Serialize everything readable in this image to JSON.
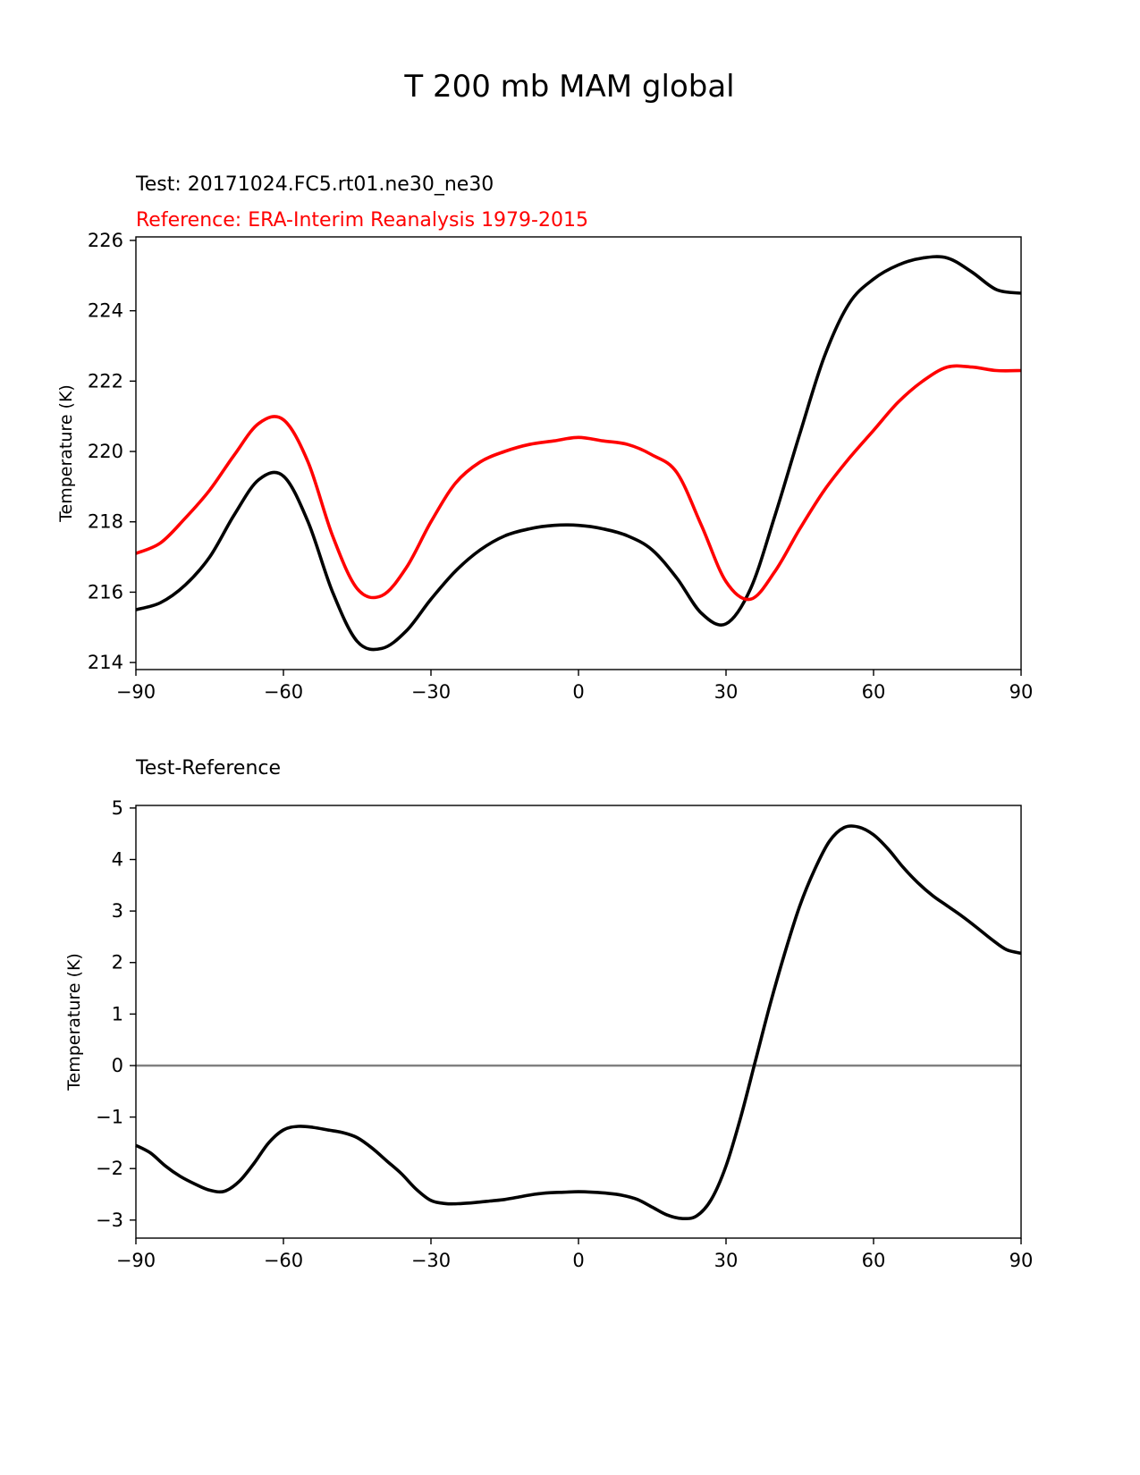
{
  "figure": {
    "title": "T 200 mb MAM global"
  },
  "colors": {
    "test": "#000000",
    "reference": "#ff0000",
    "zero_line": "#808080",
    "axes": "#000000"
  },
  "chart_data": [
    {
      "type": "line",
      "subtitle_test": "Test: 20171024.FC5.rt01.ne30_ne30",
      "subtitle_reference": "Reference: ERA-Interim Reanalysis 1979-2015",
      "xlabel": "",
      "ylabel": "Temperature (K)",
      "xlim": [
        -90,
        90
      ],
      "ylim": [
        213.8,
        226.1
      ],
      "xticks": [
        -90,
        -60,
        -30,
        0,
        30,
        60,
        90
      ],
      "xtick_labels": [
        "−90",
        "−60",
        "−30",
        "0",
        "30",
        "60",
        "90"
      ],
      "yticks": [
        214,
        216,
        218,
        220,
        222,
        224,
        226
      ],
      "ytick_labels": [
        "214",
        "216",
        "218",
        "220",
        "222",
        "224",
        "226"
      ],
      "x": [
        -90,
        -85,
        -80,
        -75,
        -70,
        -65,
        -60,
        -55,
        -50,
        -45,
        -40,
        -35,
        -30,
        -25,
        -20,
        -15,
        -10,
        -5,
        0,
        5,
        10,
        15,
        20,
        25,
        30,
        35,
        40,
        45,
        50,
        55,
        60,
        65,
        70,
        75,
        80,
        85,
        90
      ],
      "series": [
        {
          "name": "Test",
          "color": "#000000",
          "values": [
            215.5,
            215.7,
            216.2,
            217.0,
            218.2,
            219.2,
            219.3,
            218.0,
            216.0,
            214.6,
            214.4,
            214.9,
            215.8,
            216.6,
            217.2,
            217.6,
            217.8,
            217.9,
            217.9,
            217.8,
            217.6,
            217.2,
            216.4,
            215.4,
            215.1,
            216.1,
            218.2,
            220.5,
            222.7,
            224.2,
            224.9,
            225.3,
            225.5,
            225.5,
            225.1,
            224.6,
            224.5
          ]
        },
        {
          "name": "Reference",
          "color": "#ff0000",
          "values": [
            217.1,
            217.4,
            218.1,
            218.9,
            219.9,
            220.8,
            220.9,
            219.7,
            217.6,
            216.1,
            215.9,
            216.7,
            218.0,
            219.1,
            219.7,
            220.0,
            220.2,
            220.3,
            220.4,
            220.3,
            220.2,
            219.9,
            219.4,
            217.9,
            216.3,
            215.8,
            216.6,
            217.8,
            218.9,
            219.8,
            220.6,
            221.4,
            222.0,
            222.4,
            222.4,
            222.3,
            222.3
          ]
        }
      ]
    },
    {
      "type": "line",
      "subtitle": "Test-Reference",
      "xlabel": "",
      "ylabel": "Temperature (K)",
      "xlim": [
        -90,
        90
      ],
      "ylim": [
        -3.35,
        5.05
      ],
      "xticks": [
        -90,
        -60,
        -30,
        0,
        30,
        60,
        90
      ],
      "xtick_labels": [
        "−90",
        "−60",
        "−30",
        "0",
        "30",
        "60",
        "90"
      ],
      "yticks": [
        -3,
        -2,
        -1,
        0,
        1,
        2,
        3,
        4,
        5
      ],
      "ytick_labels": [
        "−3",
        "−2",
        "−1",
        "0",
        "1",
        "2",
        "3",
        "4",
        "5"
      ],
      "zero_line": 0,
      "x": [
        -90,
        -87,
        -84,
        -81,
        -78,
        -75,
        -72,
        -69,
        -66,
        -63,
        -60,
        -57,
        -54,
        -51,
        -48,
        -45,
        -42,
        -39,
        -36,
        -33,
        -30,
        -27,
        -24,
        -21,
        -18,
        -15,
        -12,
        -9,
        -6,
        -3,
        0,
        3,
        6,
        9,
        12,
        15,
        18,
        21,
        24,
        27,
        30,
        33,
        36,
        39,
        42,
        45,
        48,
        51,
        54,
        57,
        60,
        63,
        66,
        69,
        72,
        75,
        78,
        81,
        84,
        87,
        90
      ],
      "series": [
        {
          "name": "Test-Reference",
          "color": "#000000",
          "values": [
            -1.55,
            -1.7,
            -1.95,
            -2.15,
            -2.3,
            -2.42,
            -2.44,
            -2.25,
            -1.9,
            -1.5,
            -1.25,
            -1.18,
            -1.2,
            -1.25,
            -1.3,
            -1.4,
            -1.6,
            -1.85,
            -2.1,
            -2.4,
            -2.62,
            -2.68,
            -2.68,
            -2.66,
            -2.63,
            -2.6,
            -2.55,
            -2.5,
            -2.47,
            -2.46,
            -2.45,
            -2.46,
            -2.48,
            -2.52,
            -2.6,
            -2.75,
            -2.9,
            -2.97,
            -2.92,
            -2.6,
            -1.95,
            -1.0,
            0.1,
            1.2,
            2.2,
            3.1,
            3.8,
            4.35,
            4.62,
            4.63,
            4.48,
            4.2,
            3.85,
            3.55,
            3.3,
            3.1,
            2.9,
            2.68,
            2.45,
            2.25,
            2.18
          ]
        }
      ]
    }
  ]
}
